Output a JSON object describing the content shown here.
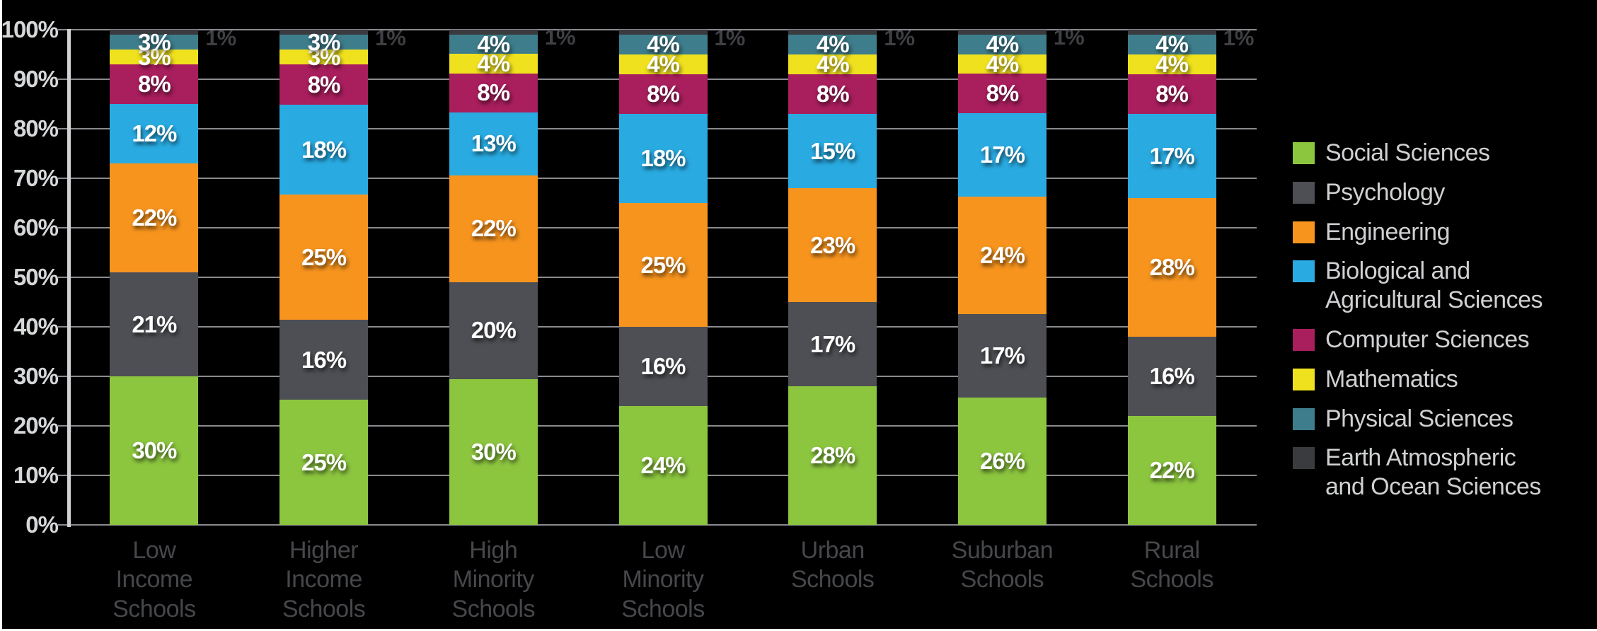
{
  "figure": {
    "background": "#000000"
  },
  "chart_data": {
    "type": "bar",
    "subtype": "stacked-100-percent-column",
    "value_suffix": "%",
    "grid": true,
    "legend_position": "right",
    "ylim": [
      0,
      100
    ],
    "y_ticks": [
      "100%",
      "90%",
      "80%",
      "70%",
      "60%",
      "50%",
      "40%",
      "30%",
      "20%",
      "10%",
      "0%"
    ],
    "categories": [
      {
        "label": "Low Income Schools",
        "lines": [
          "Low",
          "Income",
          "Schools"
        ]
      },
      {
        "label": "Higher Income Schools",
        "lines": [
          "Higher",
          "Income",
          "Schools"
        ]
      },
      {
        "label": "High Minority Schools",
        "lines": [
          "High",
          "Minority",
          "Schools"
        ]
      },
      {
        "label": "Low Minority Schools",
        "lines": [
          "Low",
          "Minority",
          "Schools"
        ]
      },
      {
        "label": "Urban Schools",
        "lines": [
          "Urban",
          "Schools"
        ]
      },
      {
        "label": "Suburban Schools",
        "lines": [
          "Suburban",
          "Schools"
        ]
      },
      {
        "label": "Rural Schools",
        "lines": [
          "Rural",
          "Schools"
        ]
      }
    ],
    "series": [
      {
        "name": "Social Sciences",
        "legend_lines": [
          "Social Sciences"
        ],
        "color": "#8CC63F",
        "values": [
          30,
          25,
          30,
          24,
          28,
          26,
          22
        ]
      },
      {
        "name": "Psychology",
        "legend_lines": [
          "Psychology"
        ],
        "color": "#4E4F54",
        "values": [
          21,
          16,
          20,
          16,
          17,
          17,
          16
        ]
      },
      {
        "name": "Engineering",
        "legend_lines": [
          "Engineering"
        ],
        "color": "#F7941E",
        "values": [
          22,
          25,
          22,
          25,
          23,
          24,
          28
        ]
      },
      {
        "name": "Biological and Agricultural Sciences",
        "legend_lines": [
          "Biological and",
          "Agricultural Sciences"
        ],
        "color": "#29ABE2",
        "values": [
          12,
          18,
          13,
          18,
          15,
          17,
          17
        ]
      },
      {
        "name": "Computer Sciences",
        "legend_lines": [
          "Computer Sciences"
        ],
        "color": "#A91E5D",
        "values": [
          8,
          8,
          8,
          8,
          8,
          8,
          8
        ]
      },
      {
        "name": "Mathematics",
        "legend_lines": [
          "Mathematics"
        ],
        "color": "#F0E11E",
        "values": [
          3,
          3,
          4,
          4,
          4,
          4,
          4
        ]
      },
      {
        "name": "Physical Sciences",
        "legend_lines": [
          "Physical Sciences"
        ],
        "color": "#3E7D8C",
        "values": [
          3,
          3,
          4,
          4,
          4,
          4,
          4
        ]
      },
      {
        "name": "Earth Atmospheric and Ocean Sciences",
        "legend_lines": [
          "Earth Atmospheric",
          "and Ocean Sciences"
        ],
        "color": "#3A3B3E",
        "values": [
          1,
          1,
          1,
          1,
          1,
          1,
          1
        ],
        "label_outside": true
      }
    ]
  }
}
